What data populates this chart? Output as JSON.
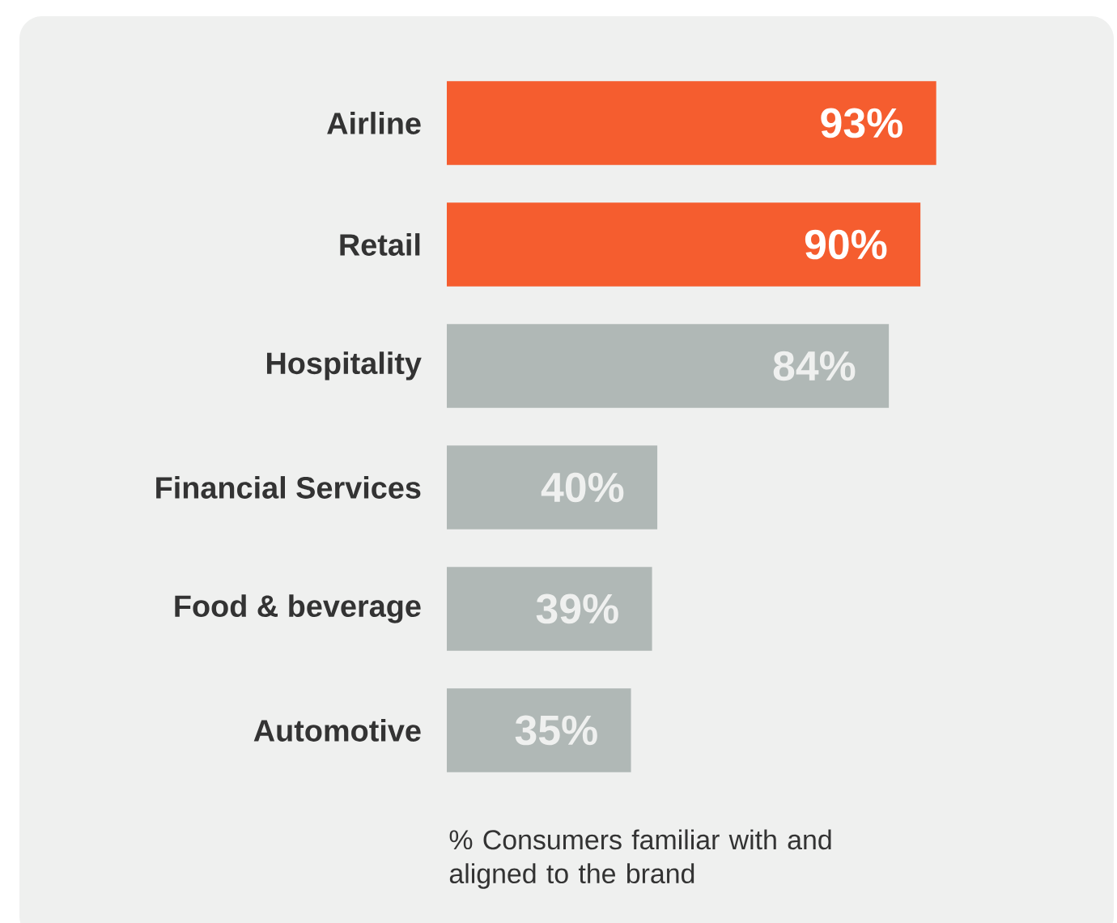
{
  "chart_data": {
    "type": "bar",
    "orientation": "horizontal",
    "categories": [
      "Airline",
      "Retail",
      "Hospitality",
      "Financial Services",
      "Food & beverage",
      "Automotive"
    ],
    "values": [
      93,
      90,
      84,
      40,
      39,
      35
    ],
    "colors": [
      "#f55d2f",
      "#f55d2f",
      "#b0b8b6",
      "#b0b8b6",
      "#b0b8b6",
      "#b0b8b6"
    ],
    "value_labels": [
      "93%",
      "90%",
      "84%",
      "40%",
      "39%",
      "35%"
    ],
    "annotations": [
      "% Consumers familiar with and aligned to the brand"
    ]
  }
}
